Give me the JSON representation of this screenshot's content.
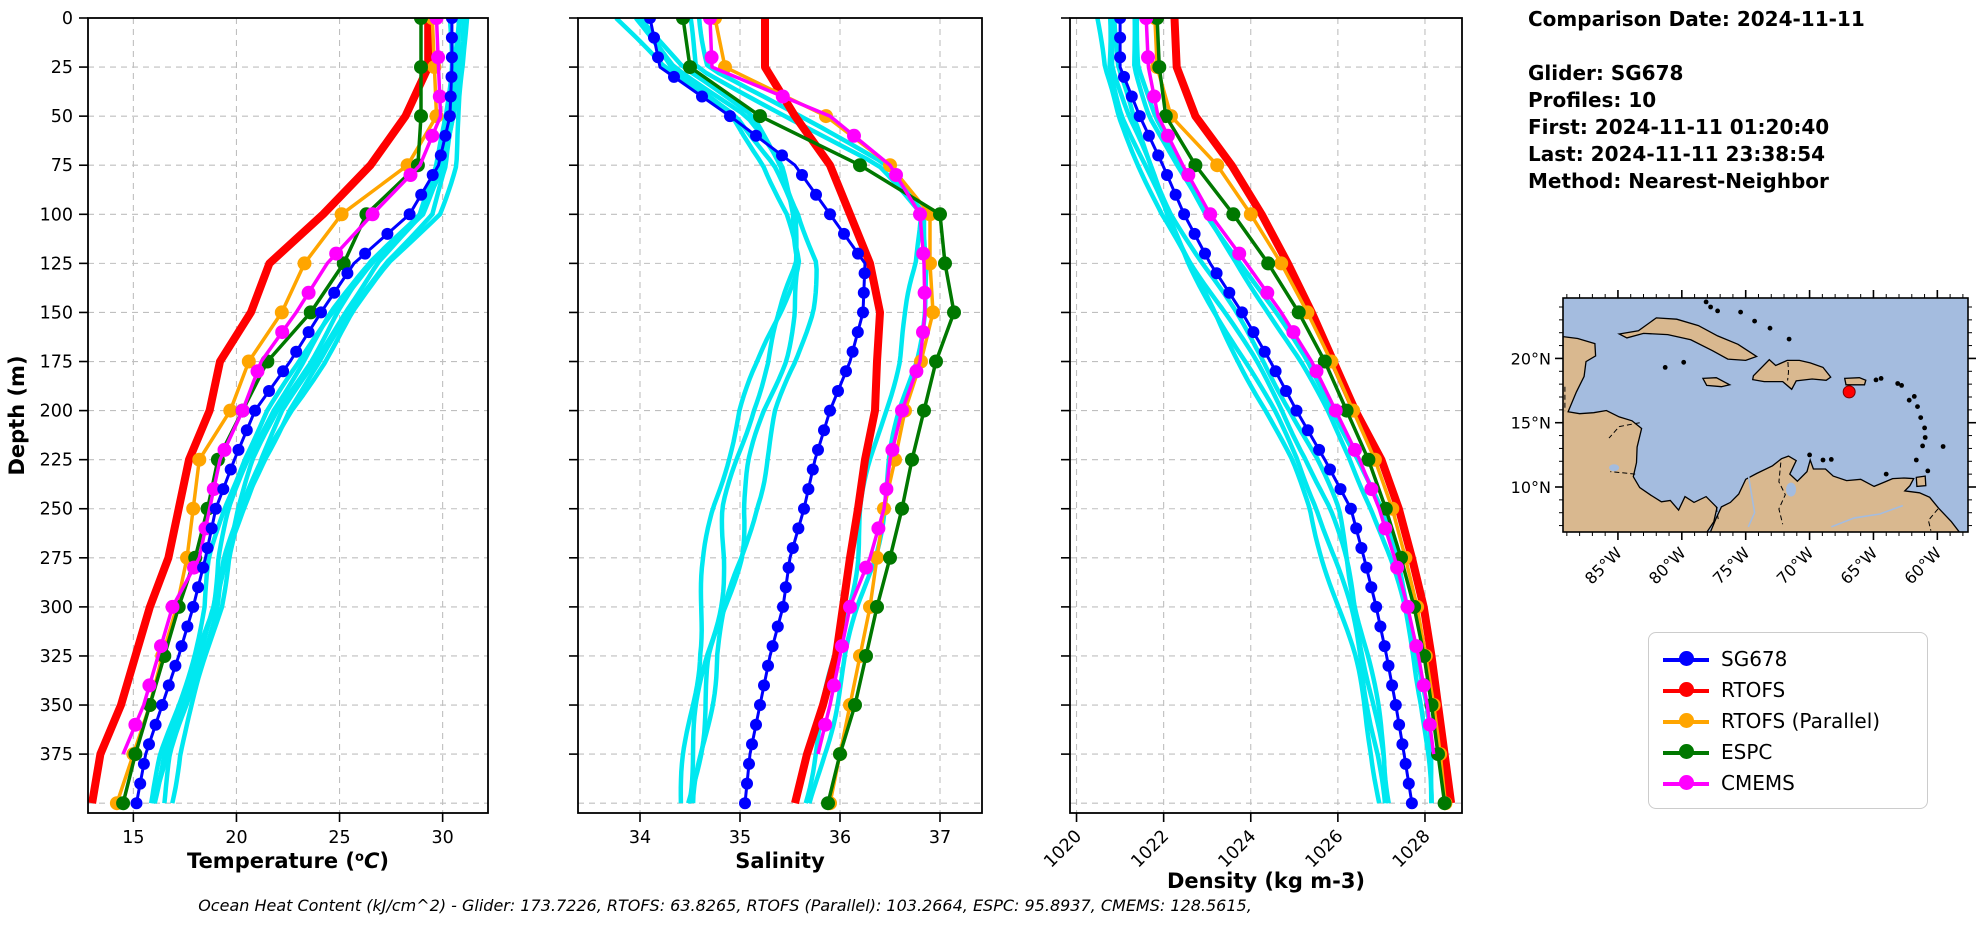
{
  "info": {
    "comparison_date": "Comparison Date: 2024-11-11",
    "glider": "Glider: SG678",
    "profiles": "Profiles: 10",
    "first": "First: 2024-11-11 01:20:40",
    "last": "Last: 2024-11-11 23:38:54",
    "method": "Method: Nearest-Neighbor"
  },
  "caption": {
    "text": "Ocean Heat Content (kJ/cm^2) - Glider: 173.7226,  RTOFS: 63.8265,  RTOFS (Parallel): 103.2664,  ESPC: 95.8937,  CMEMS: 128.5615,"
  },
  "legend": {
    "items": [
      {
        "label": "SG678",
        "color": "#0000ff"
      },
      {
        "label": "RTOFS",
        "color": "#ff0000"
      },
      {
        "label": "RTOFS (Parallel)",
        "color": "#ffa500"
      },
      {
        "label": "ESPC",
        "color": "#007800"
      },
      {
        "label": "CMEMS",
        "color": "#ff00ff"
      }
    ]
  },
  "map": {
    "xtick_lons": [
      85,
      80,
      75,
      70,
      65,
      60
    ],
    "xtick_labels": [
      "85°W",
      "80°W",
      "75°W",
      "70°W",
      "65°W",
      "60°W"
    ],
    "ytick_lats": [
      20,
      15,
      10
    ],
    "ytick_labels": [
      "20°N",
      "15°N",
      "10°N"
    ],
    "marker": {
      "lon": 66.9,
      "lat": 17.4,
      "color": "#ff0000"
    },
    "land_color": "#d9b88f",
    "ocean_color": "#a4bcdf"
  },
  "chart_data": [
    {
      "type": "line",
      "xlabel": "Temperature (°C)",
      "ylabel": "Depth (m)",
      "xlim": [
        12.8,
        32.2
      ],
      "ylim": [
        0,
        405
      ],
      "xticks": [
        15,
        20,
        25,
        30
      ],
      "xtick_rotate": false,
      "grid": true,
      "depths": [
        0,
        25,
        50,
        75,
        100,
        125,
        150,
        175,
        200,
        225,
        250,
        275,
        300,
        325,
        350,
        375,
        400
      ],
      "raw": [
        {
          "name": "glider-raw",
          "color": "#00e8f0",
          "offsets": [
            -0.45,
            -0.27,
            -0.09,
            0.09,
            0.27,
            0.45
          ],
          "amp": 0.12,
          "mean": [
            30.8,
            30.7,
            30.45,
            30.1,
            29.2,
            26.8,
            25.1,
            23.7,
            22.1,
            20.9,
            20.0,
            19.3,
            18.9,
            18.2,
            17.5,
            16.7,
            16.2
          ]
        }
      ],
      "series": [
        {
          "name": "SG678",
          "color": "#0000ff",
          "width": 3,
          "marker": 6,
          "marker_step": 10,
          "values": [
            30.45,
            30.45,
            30.35,
            29.8,
            28.4,
            25.7,
            24.1,
            22.6,
            20.9,
            19.9,
            19.0,
            18.5,
            17.9,
            17.2,
            16.4,
            15.6,
            15.15
          ]
        },
        {
          "name": "RTOFS",
          "color": "#ff0000",
          "width": 8,
          "marker": 0,
          "marker_step": 25,
          "values": [
            29.3,
            29.3,
            28.2,
            26.5,
            24.2,
            21.6,
            20.7,
            19.2,
            18.7,
            17.7,
            17.2,
            16.7,
            15.8,
            15.1,
            14.4,
            13.4,
            13.0
          ]
        },
        {
          "name": "RTOFS (Parallel)",
          "color": "#ffa500",
          "width": 3.5,
          "marker": 7,
          "marker_step": 25,
          "values": [
            29.5,
            29.6,
            29.7,
            28.3,
            25.1,
            23.3,
            22.2,
            20.6,
            19.7,
            18.2,
            17.9,
            17.6,
            17.1,
            16.4,
            15.8,
            15.0,
            14.2
          ]
        },
        {
          "name": "ESPC",
          "color": "#007800",
          "width": 3.5,
          "marker": 7,
          "marker_step": 25,
          "values": [
            28.95,
            28.95,
            28.95,
            28.8,
            26.3,
            25.2,
            23.6,
            21.5,
            20.3,
            19.1,
            18.6,
            18.0,
            17.2,
            16.5,
            15.8,
            15.1,
            14.5
          ]
        },
        {
          "name": "CMEMS",
          "color": "#ff00ff",
          "width": 3.5,
          "marker": 7,
          "marker_step": 20,
          "values": [
            29.7,
            29.8,
            29.9,
            28.9,
            26.6,
            24.4,
            22.9,
            21.2,
            20.3,
            19.2,
            18.7,
            18.2,
            16.9,
            16.2,
            15.5,
            14.5,
            null
          ]
        }
      ]
    },
    {
      "type": "line",
      "xlabel": "Salinity",
      "ylabel": "",
      "xlim": [
        33.38,
        37.42
      ],
      "ylim": [
        0,
        405
      ],
      "xticks": [
        34,
        35,
        36,
        37
      ],
      "xtick_rotate": false,
      "grid": true,
      "depths": [
        0,
        25,
        50,
        75,
        100,
        125,
        150,
        175,
        200,
        225,
        250,
        275,
        300,
        325,
        350,
        375,
        400
      ],
      "raw": [
        {
          "name": "glider-raw-fresh",
          "color": "#00e8f0",
          "offsets": [
            -0.14,
            -0.05,
            0.05,
            0.14
          ],
          "amp": 0.05,
          "mean": [
            33.9,
            34.3,
            35.0,
            35.35,
            35.55,
            35.65,
            35.55,
            35.4,
            35.2,
            35.05,
            34.92,
            34.85,
            34.75,
            34.65,
            34.6,
            34.55,
            34.5
          ]
        },
        {
          "name": "glider-raw-salty",
          "color": "#00e8f0",
          "offsets": [
            -0.07,
            0.07
          ],
          "amp": 0.04,
          "mean": [
            34.5,
            34.6,
            35.5,
            36.4,
            36.85,
            36.88,
            36.8,
            36.7,
            36.55,
            36.42,
            36.3,
            36.2,
            36.08,
            35.98,
            35.88,
            35.78,
            35.7
          ]
        }
      ],
      "series": [
        {
          "name": "SG678",
          "color": "#0000ff",
          "width": 3,
          "marker": 6,
          "marker_step": 10,
          "values": [
            34.1,
            34.2,
            34.9,
            35.55,
            35.9,
            36.25,
            36.23,
            36.1,
            35.9,
            35.75,
            35.64,
            35.5,
            35.43,
            35.3,
            35.2,
            35.1,
            35.05
          ]
        },
        {
          "name": "RTOFS",
          "color": "#ff0000",
          "width": 8,
          "marker": 0,
          "marker_step": 25,
          "values": [
            35.25,
            35.25,
            35.55,
            35.9,
            36.1,
            36.3,
            36.4,
            36.37,
            36.35,
            36.25,
            36.18,
            36.1,
            36.03,
            35.96,
            35.83,
            35.67,
            35.55
          ]
        },
        {
          "name": "RTOFS (Parallel)",
          "color": "#ffa500",
          "width": 3.5,
          "marker": 7,
          "marker_step": 25,
          "values": [
            34.75,
            34.85,
            35.86,
            36.5,
            36.9,
            36.9,
            36.93,
            36.81,
            36.65,
            36.55,
            36.44,
            36.37,
            36.3,
            36.2,
            36.1,
            36.0,
            35.9
          ]
        },
        {
          "name": "ESPC",
          "color": "#007800",
          "width": 3.5,
          "marker": 7,
          "marker_step": 25,
          "values": [
            34.43,
            34.5,
            35.2,
            36.2,
            37.0,
            37.05,
            37.14,
            36.96,
            36.84,
            36.72,
            36.62,
            36.5,
            36.37,
            36.26,
            36.15,
            36.0,
            35.88
          ]
        },
        {
          "name": "CMEMS",
          "color": "#ff00ff",
          "width": 3.5,
          "marker": 7,
          "marker_step": 20,
          "values": [
            34.7,
            34.72,
            35.9,
            36.5,
            36.8,
            36.84,
            36.85,
            36.8,
            36.62,
            36.5,
            36.44,
            36.3,
            36.1,
            36.0,
            35.9,
            35.78,
            null
          ]
        }
      ]
    },
    {
      "type": "line",
      "xlabel": "Density (kg m-3)",
      "ylabel": "",
      "xlim": [
        1019.85,
        1028.85
      ],
      "ylim": [
        0,
        405
      ],
      "xticks": [
        1020,
        1022,
        1024,
        1026,
        1028
      ],
      "xtick_rotate": true,
      "grid": true,
      "depths": [
        0,
        25,
        50,
        75,
        100,
        125,
        150,
        175,
        200,
        225,
        250,
        275,
        300,
        325,
        350,
        375,
        400
      ],
      "raw": [
        {
          "name": "glider-raw-light",
          "color": "#00e8f0",
          "offsets": [
            -0.22,
            -0.08,
            0.08,
            0.22
          ],
          "amp": 0.07,
          "mean": [
            1020.7,
            1020.75,
            1021.1,
            1021.6,
            1022.1,
            1022.7,
            1023.4,
            1024.05,
            1024.65,
            1025.2,
            1025.65,
            1025.95,
            1026.23,
            1026.5,
            1026.73,
            1026.95,
            1027.1
          ]
        },
        {
          "name": "glider-raw-dense",
          "color": "#00e8f0",
          "offsets": [
            -0.06,
            0.06
          ],
          "amp": 0.05,
          "mean": [
            1021.3,
            1021.35,
            1021.7,
            1022.3,
            1023.0,
            1023.8,
            1024.55,
            1025.25,
            1025.85,
            1026.4,
            1026.85,
            1027.2,
            1027.5,
            1027.75,
            1027.95,
            1028.08,
            1028.18
          ]
        }
      ],
      "series": [
        {
          "name": "SG678",
          "color": "#0000ff",
          "width": 3,
          "marker": 6,
          "marker_step": 10,
          "values": [
            1021.0,
            1021.0,
            1021.45,
            1021.98,
            1022.47,
            1023.07,
            1023.8,
            1024.45,
            1025.05,
            1025.7,
            1026.3,
            1026.6,
            1026.88,
            1027.12,
            1027.33,
            1027.52,
            1027.7
          ]
        },
        {
          "name": "RTOFS",
          "color": "#ff0000",
          "width": 8,
          "marker": 0,
          "marker_step": 25,
          "values": [
            1022.25,
            1022.3,
            1022.73,
            1023.56,
            1024.25,
            1024.85,
            1025.4,
            1025.9,
            1026.4,
            1027.0,
            1027.4,
            1027.7,
            1027.97,
            1028.15,
            1028.3,
            1028.45,
            1028.6
          ]
        },
        {
          "name": "RTOFS (Parallel)",
          "color": "#ffa500",
          "width": 3.5,
          "marker": 7,
          "marker_step": 25,
          "values": [
            1021.8,
            1021.85,
            1022.17,
            1023.23,
            1024.0,
            1024.7,
            1025.3,
            1025.85,
            1026.35,
            1026.85,
            1027.25,
            1027.55,
            1027.82,
            1028.02,
            1028.2,
            1028.35,
            1028.47
          ]
        },
        {
          "name": "ESPC",
          "color": "#007800",
          "width": 3.5,
          "marker": 7,
          "marker_step": 25,
          "values": [
            1021.85,
            1021.9,
            1022.05,
            1022.73,
            1023.6,
            1024.4,
            1025.1,
            1025.7,
            1026.2,
            1026.7,
            1027.1,
            1027.45,
            1027.75,
            1027.98,
            1028.15,
            1028.3,
            1028.45
          ]
        },
        {
          "name": "CMEMS",
          "color": "#ff00ff",
          "width": 3.5,
          "marker": 7,
          "marker_step": 20,
          "values": [
            1021.6,
            1021.65,
            1021.87,
            1022.44,
            1023.07,
            1023.9,
            1024.7,
            1025.4,
            1025.95,
            1026.5,
            1026.95,
            1027.3,
            1027.6,
            1027.85,
            1028.05,
            1028.2,
            null
          ]
        }
      ]
    }
  ],
  "axes": {
    "depth_ticks": [
      0,
      25,
      50,
      75,
      100,
      125,
      150,
      175,
      200,
      225,
      250,
      275,
      300,
      325,
      350,
      375
    ],
    "depth_label": "Depth (m)"
  }
}
